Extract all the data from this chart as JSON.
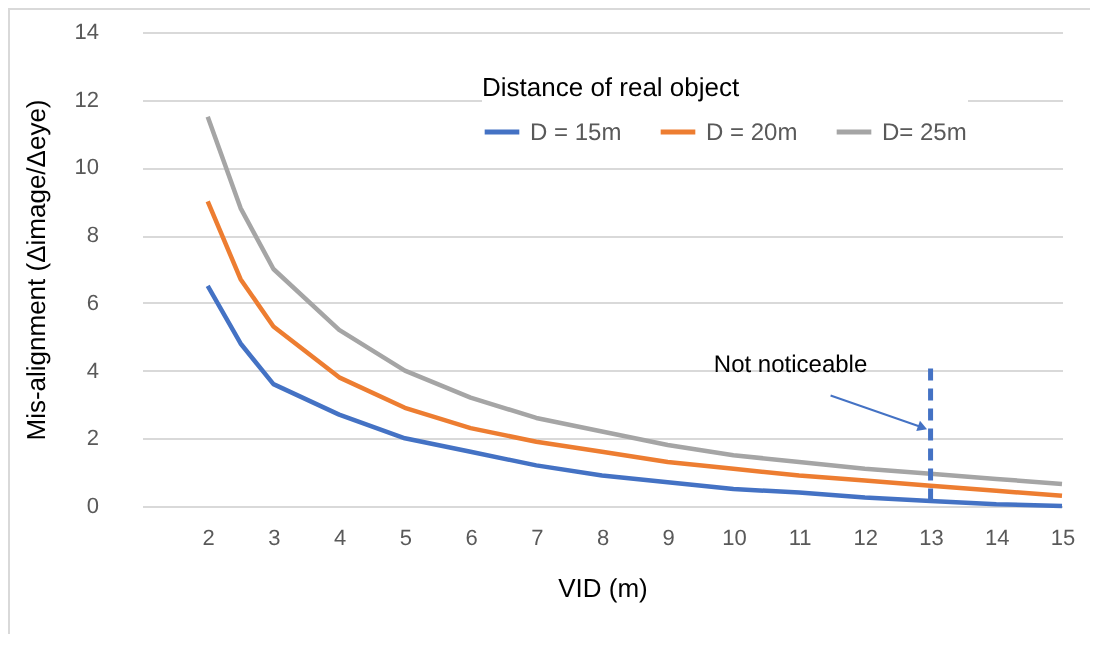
{
  "chart_data": {
    "type": "line",
    "xlabel": "VID (m)",
    "ylabel": "Mis-alignment (Δimage/Δeye)",
    "legend_title": "Distance of real object",
    "x": [
      2,
      2.5,
      3,
      4,
      5,
      6,
      7,
      8,
      9,
      10,
      11,
      12,
      13,
      14,
      15
    ],
    "series": [
      {
        "name": "D = 15m",
        "color": "#4472c4",
        "values": [
          6.5,
          4.8,
          3.6,
          2.7,
          2.0,
          1.6,
          1.2,
          0.9,
          0.7,
          0.5,
          0.4,
          0.25,
          0.15,
          0.05,
          0.0
        ]
      },
      {
        "name": "D = 20m",
        "color": "#ed7d31",
        "values": [
          9.0,
          6.7,
          5.3,
          3.8,
          2.9,
          2.3,
          1.9,
          1.6,
          1.3,
          1.1,
          0.9,
          0.75,
          0.6,
          0.45,
          0.3
        ]
      },
      {
        "name": "D= 25m",
        "color": "#a5a5a5",
        "values": [
          11.5,
          8.8,
          7.0,
          5.2,
          4.0,
          3.2,
          2.6,
          2.2,
          1.8,
          1.5,
          1.3,
          1.1,
          0.95,
          0.8,
          0.65
        ]
      }
    ],
    "xlim": [
      1,
      15
    ],
    "xticks": [
      2,
      3,
      4,
      5,
      6,
      7,
      8,
      9,
      10,
      11,
      12,
      13,
      14,
      15
    ],
    "ylim": [
      0,
      14
    ],
    "yticks": [
      0,
      2,
      4,
      6,
      8,
      10,
      12,
      14
    ],
    "grid": "y",
    "legend": "top right",
    "marker": "none",
    "line_style": "solid",
    "ref_lines": [
      {
        "axis": "x",
        "value": 13,
        "label": null,
        "color": "#4472c4",
        "line_style": "dashed"
      }
    ],
    "annotations": [
      {
        "text": "Not noticeable",
        "x": 13,
        "y": 2.2
      }
    ]
  }
}
